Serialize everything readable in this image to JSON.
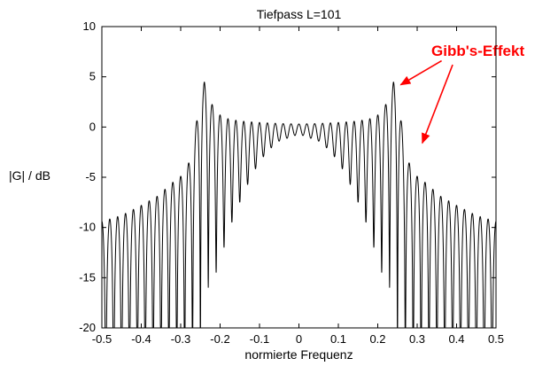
{
  "chart_data": {
    "type": "line",
    "title": "Tiefpass L=101",
    "xlabel": "normierte Frequenz",
    "ylabel": "|G| / dB",
    "xlim": [
      -0.5,
      0.5
    ],
    "ylim": [
      -20,
      10
    ],
    "xticks": [
      -0.5,
      -0.4,
      -0.3,
      -0.2,
      -0.1,
      0,
      0.1,
      0.2,
      0.3,
      0.4,
      0.5
    ],
    "xtick_labels": [
      "-0.5",
      "-0.4",
      "-0.3",
      "-0.2",
      "-0.1",
      "0",
      "0.1",
      "0.2",
      "0.3",
      "0.4",
      "0.5"
    ],
    "yticks": [
      -20,
      -15,
      -10,
      -5,
      0,
      5,
      10
    ],
    "ytick_labels": [
      "-20",
      "-15",
      "-10",
      "-5",
      "0",
      "5",
      "10"
    ],
    "grid": false,
    "legend": null,
    "line_color": "#000000",
    "axis_color": "#000000",
    "background_color": "#ffffff",
    "filter_length": 101,
    "cutoff_normalized": 0.25,
    "ripple_count": 50,
    "clip_db": -20,
    "passband_peak_db": 4.5,
    "envelope_top_db": [
      [
        0,
        0.3
      ],
      [
        0.05,
        0.35
      ],
      [
        0.1,
        0.45
      ],
      [
        0.15,
        0.6
      ],
      [
        0.19,
        0.9
      ],
      [
        0.21,
        1.5
      ],
      [
        0.225,
        2.6
      ],
      [
        0.24,
        4.5
      ],
      [
        0.25,
        3.2
      ],
      [
        0.258,
        1.0
      ],
      [
        0.266,
        -1.2
      ],
      [
        0.277,
        -3.3
      ],
      [
        0.29,
        -4.6
      ],
      [
        0.32,
        -5.5
      ],
      [
        0.36,
        -6.9
      ],
      [
        0.4,
        -7.8
      ],
      [
        0.45,
        -8.8
      ],
      [
        0.5,
        -9.4
      ]
    ],
    "envelope_bottom_db": [
      [
        0,
        -0.7
      ],
      [
        0.05,
        -1.4
      ],
      [
        0.08,
        -2.4
      ],
      [
        0.1,
        -3.5
      ],
      [
        0.12,
        -4.8
      ],
      [
        0.15,
        -7.5
      ],
      [
        0.17,
        -9.5
      ],
      [
        0.19,
        -12
      ],
      [
        0.2,
        -13.5
      ],
      [
        0.215,
        -15
      ],
      [
        0.23,
        -16
      ],
      [
        0.245,
        -20
      ],
      [
        0.255,
        -60
      ],
      [
        0.5,
        -60
      ]
    ],
    "annotation": {
      "text": "Gibb's-Effekt",
      "color": "#ff0000",
      "arrows": [
        {
          "from_f": 0.362,
          "from_db": 6.6,
          "to_f": 0.258,
          "to_db": 4.2
        },
        {
          "from_f": 0.39,
          "from_db": 6.2,
          "to_f": 0.313,
          "to_db": -1.6
        }
      ]
    }
  }
}
